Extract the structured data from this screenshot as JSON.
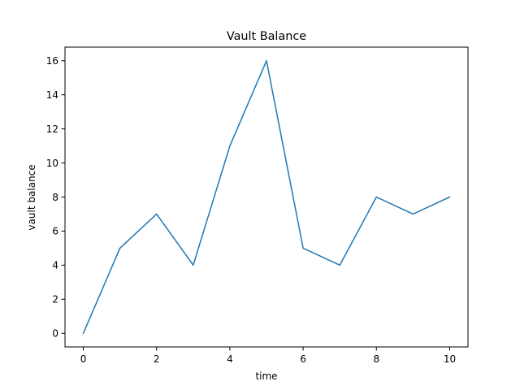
{
  "chart_data": {
    "type": "line",
    "title": "Vault Balance",
    "xlabel": "time",
    "ylabel": "vault balance",
    "x": [
      0,
      1,
      2,
      3,
      4,
      5,
      6,
      7,
      8,
      9,
      10
    ],
    "series": [
      {
        "values": [
          0,
          5,
          7,
          4,
          11,
          16,
          5,
          4,
          8,
          7,
          8
        ],
        "color": "#1f77b4"
      }
    ],
    "xlim": [
      -0.5,
      10.5
    ],
    "ylim": [
      -0.8,
      16.8
    ],
    "xticks": [
      0,
      2,
      4,
      6,
      8,
      10
    ],
    "yticks": [
      0,
      2,
      4,
      6,
      8,
      10,
      12,
      14,
      16
    ],
    "grid": false,
    "legend": "none"
  }
}
